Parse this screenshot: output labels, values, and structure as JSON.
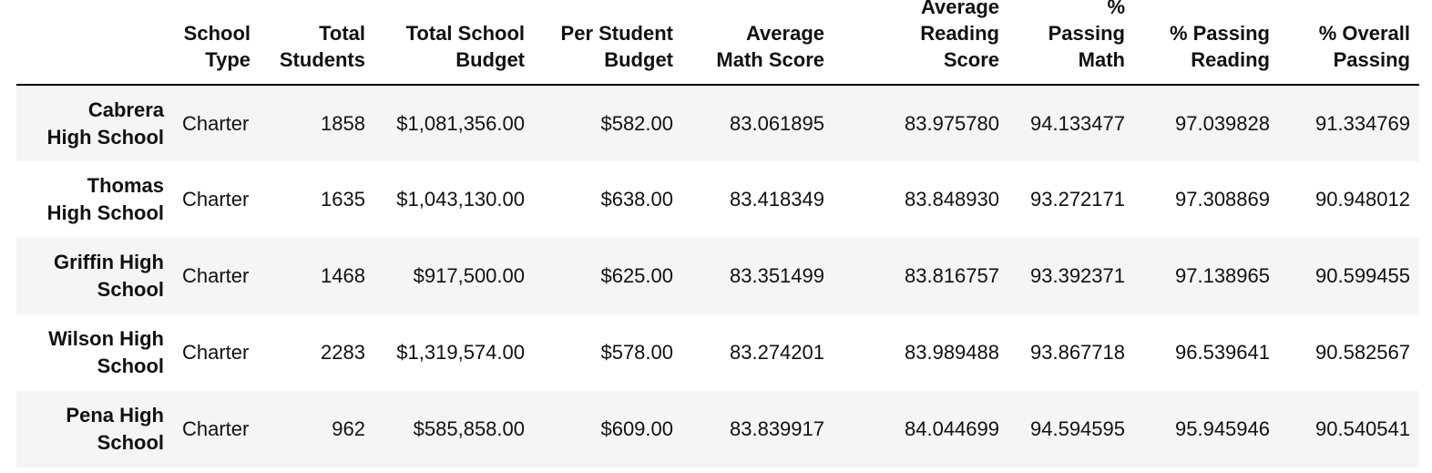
{
  "table": {
    "columns": [
      "",
      "School Type",
      "Total Students",
      "Total School Budget",
      "Per Student Budget",
      "Average Math Score",
      "Average Reading Score",
      "% Passing Math",
      "% Passing Reading",
      "% Overall Passing"
    ],
    "header_lines": {
      "school_type": [
        "School",
        "Type"
      ],
      "total_students": [
        "Total",
        "Students"
      ],
      "total_budget": [
        "Total School",
        "Budget"
      ],
      "per_student": [
        "Per Student",
        "Budget"
      ],
      "avg_math": [
        "Average",
        "Math Score"
      ],
      "avg_reading": [
        "Average",
        "Reading",
        "Score"
      ],
      "pct_math": [
        "%",
        "Passing",
        "Math"
      ],
      "pct_reading": [
        "% Passing",
        "Reading"
      ],
      "pct_overall": [
        "% Overall",
        "Passing"
      ]
    },
    "rows": [
      {
        "name_lines": [
          "Cabrera",
          "High School"
        ],
        "school_type": "Charter",
        "total_students": "1858",
        "total_budget": "$1,081,356.00",
        "per_student": "$582.00",
        "avg_math": "83.061895",
        "avg_reading": "83.975780",
        "pct_math": "94.133477",
        "pct_reading": "97.039828",
        "pct_overall": "91.334769"
      },
      {
        "name_lines": [
          "Thomas",
          "High School"
        ],
        "school_type": "Charter",
        "total_students": "1635",
        "total_budget": "$1,043,130.00",
        "per_student": "$638.00",
        "avg_math": "83.418349",
        "avg_reading": "83.848930",
        "pct_math": "93.272171",
        "pct_reading": "97.308869",
        "pct_overall": "90.948012"
      },
      {
        "name_lines": [
          "Griffin High",
          "School"
        ],
        "school_type": "Charter",
        "total_students": "1468",
        "total_budget": "$917,500.00",
        "per_student": "$625.00",
        "avg_math": "83.351499",
        "avg_reading": "83.816757",
        "pct_math": "93.392371",
        "pct_reading": "97.138965",
        "pct_overall": "90.599455"
      },
      {
        "name_lines": [
          "Wilson High",
          "School"
        ],
        "school_type": "Charter",
        "total_students": "2283",
        "total_budget": "$1,319,574.00",
        "per_student": "$578.00",
        "avg_math": "83.274201",
        "avg_reading": "83.989488",
        "pct_math": "93.867718",
        "pct_reading": "96.539641",
        "pct_overall": "90.582567"
      },
      {
        "name_lines": [
          "Pena High",
          "School"
        ],
        "school_type": "Charter",
        "total_students": "962",
        "total_budget": "$585,858.00",
        "per_student": "$609.00",
        "avg_math": "83.839917",
        "avg_reading": "84.044699",
        "pct_math": "94.594595",
        "pct_reading": "95.945946",
        "pct_overall": "90.540541"
      }
    ]
  },
  "colors": {
    "stripe": "#f5f5f5",
    "rule": "#000000",
    "text": "#111111"
  }
}
